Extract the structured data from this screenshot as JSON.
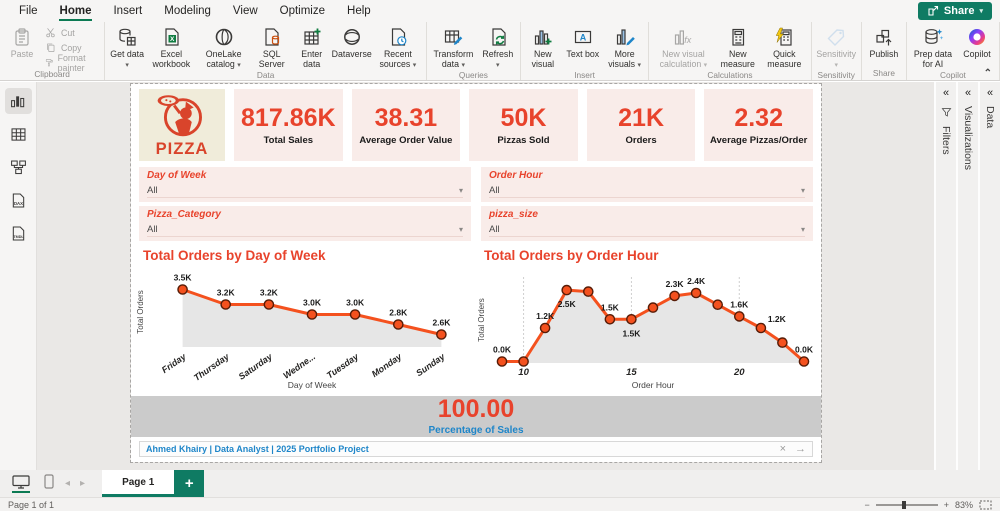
{
  "colors": {
    "accent_red": "#e8432c",
    "line_orange": "#f4511e",
    "marker_stroke": "#571c07",
    "area_gray": "#e6e6e6",
    "blue": "#1f86c9",
    "green": "#0f7b63",
    "card_pink": "#f9ece9",
    "logo_cream": "#f0ecda",
    "band_gray": "#cbcbcb"
  },
  "menu": {
    "items": [
      "File",
      "Home",
      "Insert",
      "Modeling",
      "View",
      "Optimize",
      "Help"
    ],
    "active_index": 1,
    "share_label": "Share"
  },
  "ribbon": {
    "groups": [
      {
        "label": "Clipboard",
        "items": [
          {
            "label": "Paste",
            "icon": "paste-icon",
            "disabled": true,
            "type": "large"
          },
          {
            "type": "stack",
            "buttons": [
              {
                "label": "Cut",
                "icon": "cut-icon",
                "disabled": true
              },
              {
                "label": "Copy",
                "icon": "copy-icon",
                "disabled": true
              },
              {
                "label": "Format painter",
                "icon": "format-painter-icon",
                "disabled": true
              }
            ]
          }
        ]
      },
      {
        "label": "Data",
        "items": [
          {
            "label": "Get data",
            "icon": "get-data-icon",
            "caret": true
          },
          {
            "label": "Excel workbook",
            "icon": "excel-icon"
          },
          {
            "label": "OneLake catalog",
            "icon": "onelake-icon",
            "caret": true
          },
          {
            "label": "SQL Server",
            "icon": "sql-server-icon"
          },
          {
            "label": "Enter data",
            "icon": "enter-data-icon"
          },
          {
            "label": "Dataverse",
            "icon": "dataverse-icon"
          },
          {
            "label": "Recent sources",
            "icon": "recent-sources-icon",
            "caret": true
          }
        ]
      },
      {
        "label": "Queries",
        "items": [
          {
            "label": "Transform data",
            "icon": "transform-data-icon",
            "caret": true
          },
          {
            "label": "Refresh",
            "icon": "refresh-icon",
            "caret": true
          }
        ]
      },
      {
        "label": "Insert",
        "items": [
          {
            "label": "New visual",
            "icon": "new-visual-icon"
          },
          {
            "label": "Text box",
            "icon": "text-box-icon"
          },
          {
            "label": "More visuals",
            "icon": "more-visuals-icon",
            "caret": true
          }
        ]
      },
      {
        "label": "Calculations",
        "items": [
          {
            "label": "New visual calculation",
            "icon": "visual-calculation-icon",
            "disabled": true,
            "caret": true
          },
          {
            "label": "New measure",
            "icon": "new-measure-icon"
          },
          {
            "label": "Quick measure",
            "icon": "quick-measure-icon"
          }
        ]
      },
      {
        "label": "Sensitivity",
        "items": [
          {
            "label": "Sensitivity",
            "icon": "sensitivity-icon",
            "disabled": true,
            "caret": true
          }
        ]
      },
      {
        "label": "Share",
        "items": [
          {
            "label": "Publish",
            "icon": "publish-icon"
          }
        ]
      },
      {
        "label": "Copilot",
        "items": [
          {
            "label": "Prep data for AI",
            "icon": "prep-data-icon"
          },
          {
            "label": "Copilot",
            "icon": "copilot-icon"
          }
        ]
      }
    ]
  },
  "left_nav": [
    {
      "name": "report-view",
      "active": true
    },
    {
      "name": "table-view",
      "active": false
    },
    {
      "name": "model-view",
      "active": false
    },
    {
      "name": "dax-query-view",
      "active": false
    },
    {
      "name": "tmdl-view",
      "active": false
    }
  ],
  "right_panels": [
    {
      "label": "Filters",
      "icon": "filter-funnel-icon"
    },
    {
      "label": "Visualizations"
    },
    {
      "label": "Data"
    }
  ],
  "report": {
    "logo_text": "PIZZA",
    "kpis": [
      {
        "value": "817.86K",
        "label": "Total Sales"
      },
      {
        "value": "38.31",
        "label": "Average Order Value"
      },
      {
        "value": "50K",
        "label": "Pizzas Sold"
      },
      {
        "value": "21K",
        "label": "Orders"
      },
      {
        "value": "2.32",
        "label": "Average Pizzas/Order"
      }
    ],
    "slicers": [
      {
        "title": "Day of Week",
        "value": "All"
      },
      {
        "title": "Order Hour",
        "value": "All"
      },
      {
        "title": "Pizza_Category",
        "value": "All"
      },
      {
        "title": "pizza_size",
        "value": "All"
      }
    ],
    "percentage_card": {
      "value": "100.00",
      "label": "Percentage of Sales"
    },
    "footer": {
      "text": "Ahmed Khairy | Data Analyst | 2025 Portfolio Project"
    }
  },
  "chart_data": [
    {
      "type": "line",
      "area": true,
      "title": "Total Orders by Day of Week",
      "xlabel": "Day of Week",
      "ylabel": "Total Orders",
      "categories": [
        "Friday",
        "Thursday",
        "Saturday",
        "Wedne...",
        "Tuesday",
        "Monday",
        "Sunday"
      ],
      "values": [
        3.5,
        3.2,
        3.2,
        3.0,
        3.0,
        2.8,
        2.6
      ],
      "data_labels": [
        "3.5K",
        "3.2K",
        "3.2K",
        "3.0K",
        "3.0K",
        "2.8K",
        "2.6K"
      ],
      "ylim": [
        2.35,
        3.75
      ],
      "grid": false,
      "legend": "none"
    },
    {
      "type": "line",
      "area": true,
      "title": "Total Orders by Order Hour",
      "xlabel": "Order Hour",
      "ylabel": "Total Orders",
      "x": [
        9,
        10,
        11,
        12,
        13,
        14,
        15,
        16,
        17,
        18,
        19,
        20,
        21,
        22,
        23
      ],
      "values": [
        0.05,
        0.05,
        1.2,
        2.5,
        2.45,
        1.5,
        1.5,
        1.9,
        2.3,
        2.4,
        2.0,
        1.6,
        1.2,
        0.7,
        0.05
      ],
      "x_ticks": [
        10,
        15,
        20
      ],
      "labels": [
        {
          "x": 9,
          "text": "0.0K",
          "pos": "above"
        },
        {
          "x": 11,
          "text": "1.2K",
          "pos": "above"
        },
        {
          "x": 12,
          "text": "2.5K",
          "pos": "below"
        },
        {
          "x": 14,
          "text": "1.5K",
          "pos": "above"
        },
        {
          "x": 15,
          "text": "1.5K",
          "pos": "below"
        },
        {
          "x": 17,
          "text": "2.3K",
          "pos": "above"
        },
        {
          "x": 18,
          "text": "2.4K",
          "pos": "above"
        },
        {
          "x": 20,
          "text": "1.6K",
          "pos": "above"
        },
        {
          "x": 21,
          "text": "1.2K",
          "pos": "right"
        },
        {
          "x": 23,
          "text": "0.0K",
          "pos": "above"
        }
      ],
      "ylim": [
        0,
        2.95
      ],
      "grid": true,
      "legend": "none"
    }
  ],
  "bottom_bar": {
    "page_tab": "Page 1",
    "status_left": "Page 1 of 1",
    "zoom_level": "83%"
  }
}
